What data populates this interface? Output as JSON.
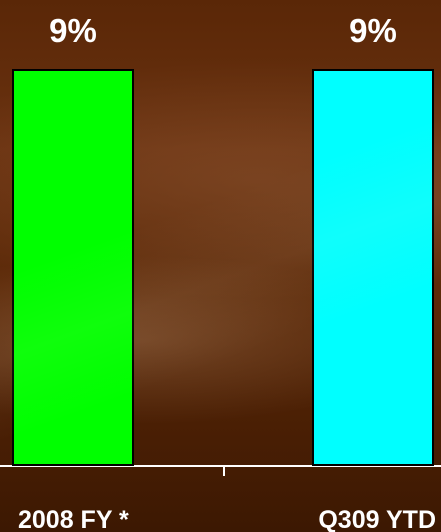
{
  "chart_data": {
    "type": "bar",
    "categories": [
      "2008 FY *",
      "Q309 YTD"
    ],
    "values": [
      9,
      9
    ],
    "data_labels": [
      "9%",
      "9%"
    ],
    "unit": "%",
    "colors": [
      "#00ff00",
      "#00ffff"
    ],
    "bar_outline_color": "#000000",
    "axis_color": "#ffffff",
    "title": "",
    "xlabel": "",
    "ylabel": "",
    "ylim": [
      0,
      9
    ],
    "grid": false,
    "legend": "none"
  }
}
